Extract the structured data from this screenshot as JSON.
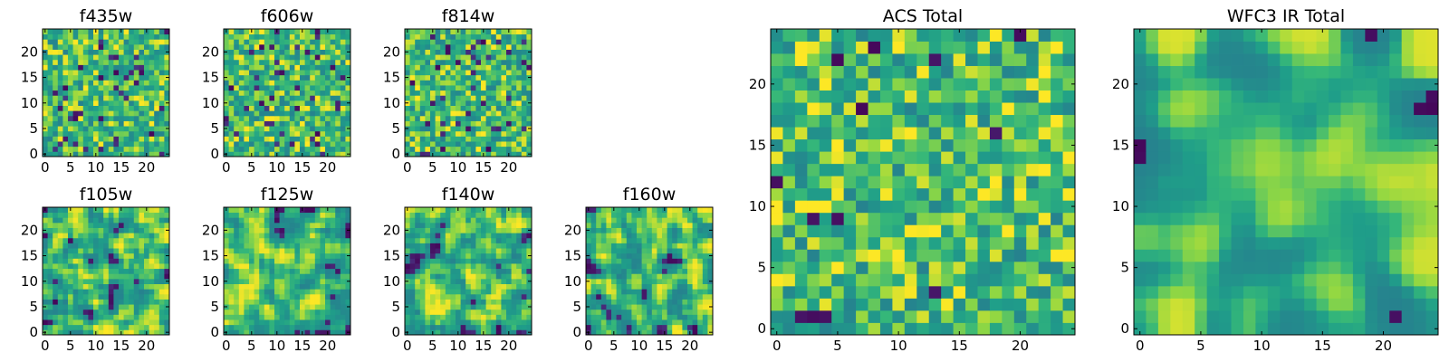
{
  "chart_data": {
    "type": "heatmap",
    "colormap": "viridis",
    "grid_size": 25,
    "panels": [
      {
        "id": "f435w",
        "title": "f435w",
        "xticks": [
          "0",
          "5",
          "10",
          "15",
          "20"
        ],
        "yticks": [
          "0",
          "5",
          "10",
          "15",
          "20"
        ],
        "seed": 11,
        "smooth": 0,
        "dark_fraction": 0.06,
        "hot_fraction": 0.12
      },
      {
        "id": "f606w",
        "title": "f606w",
        "xticks": [
          "0",
          "5",
          "10",
          "15",
          "20"
        ],
        "yticks": [
          "0",
          "5",
          "10",
          "15",
          "20"
        ],
        "seed": 23,
        "smooth": 0,
        "dark_fraction": 0.06,
        "hot_fraction": 0.12
      },
      {
        "id": "f814w",
        "title": "f814w",
        "xticks": [
          "0",
          "5",
          "10",
          "15",
          "20"
        ],
        "yticks": [
          "0",
          "5",
          "10",
          "15",
          "20"
        ],
        "seed": 37,
        "smooth": 0,
        "dark_fraction": 0.06,
        "hot_fraction": 0.12
      },
      {
        "id": "f105w",
        "title": "f105w",
        "xticks": [
          "0",
          "5",
          "10",
          "15",
          "20"
        ],
        "yticks": [
          "0",
          "5",
          "10",
          "15",
          "20"
        ],
        "seed": 41,
        "smooth": 1,
        "dark_fraction": 0.04,
        "hot_fraction": 0.1
      },
      {
        "id": "f125w",
        "title": "f125w",
        "xticks": [
          "0",
          "5",
          "10",
          "15",
          "20"
        ],
        "yticks": [
          "0",
          "5",
          "10",
          "15",
          "20"
        ],
        "seed": 53,
        "smooth": 1,
        "dark_fraction": 0.04,
        "hot_fraction": 0.1
      },
      {
        "id": "f140w",
        "title": "f140w",
        "xticks": [
          "0",
          "5",
          "10",
          "15",
          "20"
        ],
        "yticks": [
          "0",
          "5",
          "10",
          "15",
          "20"
        ],
        "seed": 67,
        "smooth": 1,
        "dark_fraction": 0.05,
        "hot_fraction": 0.1
      },
      {
        "id": "f160w",
        "title": "f160w",
        "xticks": [
          "0",
          "5",
          "10",
          "15",
          "20"
        ],
        "yticks": [
          "0",
          "5",
          "10",
          "15",
          "20"
        ],
        "seed": 79,
        "smooth": 1,
        "dark_fraction": 0.05,
        "hot_fraction": 0.1
      },
      {
        "id": "acs-total",
        "title": "ACS Total",
        "xticks": [
          "0",
          "5",
          "10",
          "15",
          "20"
        ],
        "yticks": [
          "0",
          "5",
          "10",
          "15",
          "20"
        ],
        "seed": 97,
        "smooth": 0,
        "dark_fraction": 0.02,
        "hot_fraction": 0.15
      },
      {
        "id": "wfc3-ir-total",
        "title": "WFC3 IR Total",
        "xticks": [
          "0",
          "5",
          "10",
          "15",
          "20"
        ],
        "yticks": [
          "0",
          "5",
          "10",
          "15",
          "20"
        ],
        "seed": 113,
        "smooth": 3,
        "dark_fraction": 0.01,
        "hot_fraction": 0.05
      }
    ]
  }
}
